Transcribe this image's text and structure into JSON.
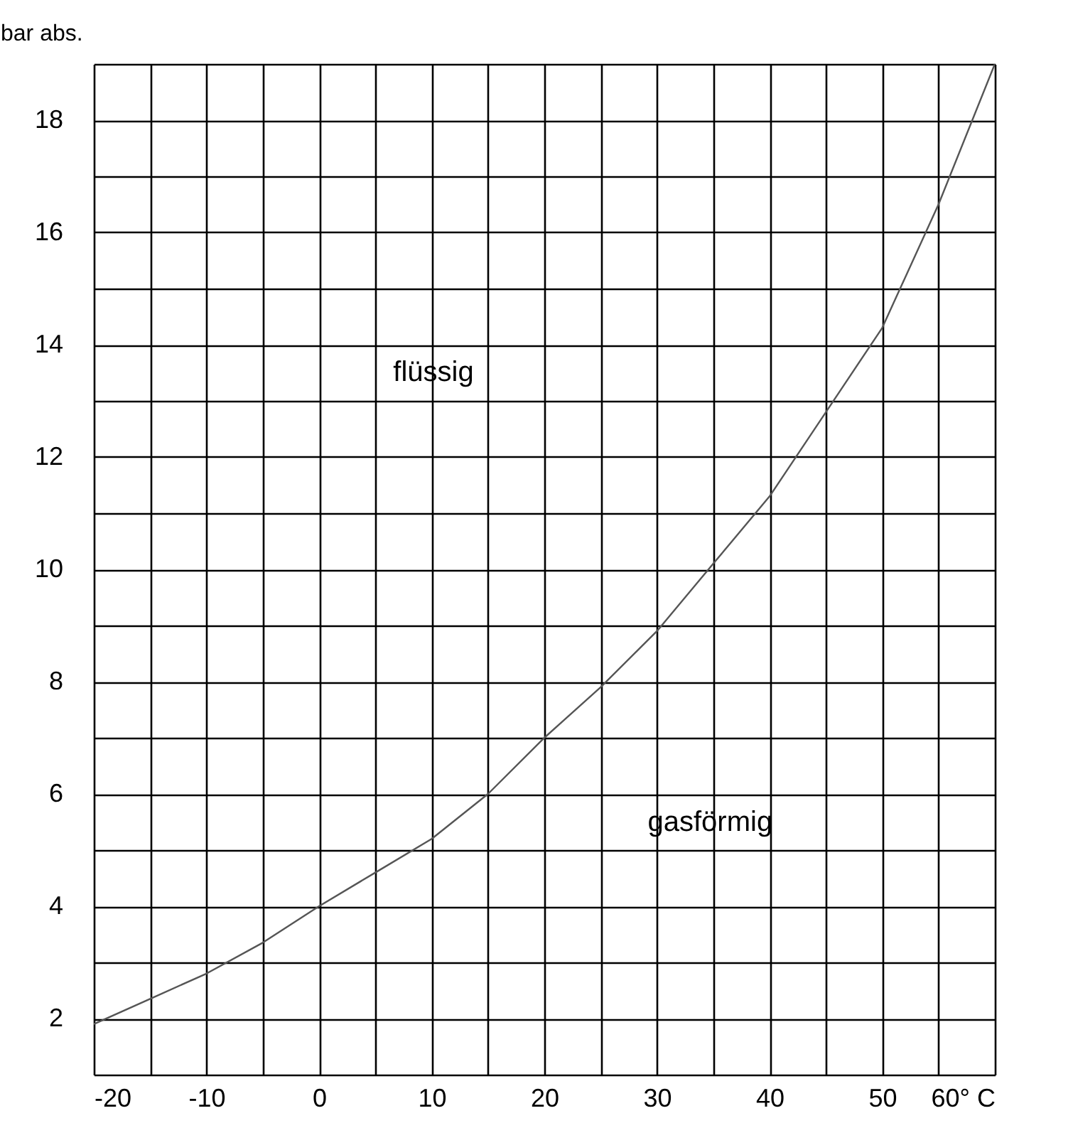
{
  "chart_data": {
    "type": "line",
    "ylabel": "bar abs.",
    "x": [
      -20,
      -15,
      -10,
      -5,
      0,
      5,
      10,
      15,
      20,
      25,
      30,
      35,
      40,
      45,
      50,
      55,
      60
    ],
    "series": [
      {
        "color": "#555555",
        "values": [
          1.9,
          2.35,
          2.8,
          3.35,
          4.0,
          4.6,
          5.2,
          6.0,
          7.0,
          7.9,
          8.9,
          10.1,
          11.3,
          12.8,
          14.3,
          16.5,
          19.0
        ]
      }
    ],
    "xlim": [
      -20,
      60
    ],
    "ylim": [
      1,
      19
    ],
    "xticks": [
      -20,
      {
        "value": -15,
        "label": null
      },
      -10,
      {
        "value": -5,
        "label": null
      },
      0,
      {
        "value": 5,
        "label": null
      },
      10,
      {
        "value": 15,
        "label": null
      },
      20,
      {
        "value": 25,
        "label": null
      },
      30,
      {
        "value": 35,
        "label": null
      },
      40,
      {
        "value": 45,
        "label": null
      },
      50,
      {
        "value": 55,
        "label": null
      },
      {
        "value": 60,
        "label": "60° C"
      }
    ],
    "yticks": [
      {
        "value": 1,
        "label": null
      },
      2,
      {
        "value": 3,
        "label": null
      },
      4,
      {
        "value": 5,
        "label": null
      },
      6,
      {
        "value": 7,
        "label": null
      },
      8,
      {
        "value": 9,
        "label": null
      },
      10,
      {
        "value": 11,
        "label": null
      },
      12,
      {
        "value": 13,
        "label": null
      },
      14,
      {
        "value": 15,
        "label": null
      },
      16,
      {
        "value": 17,
        "label": null
      },
      18,
      {
        "value": 19,
        "label": null
      }
    ],
    "grid": true,
    "marker": "none",
    "line_style": "solid",
    "annotations": [
      "flüssig",
      "gasförmig"
    ]
  }
}
